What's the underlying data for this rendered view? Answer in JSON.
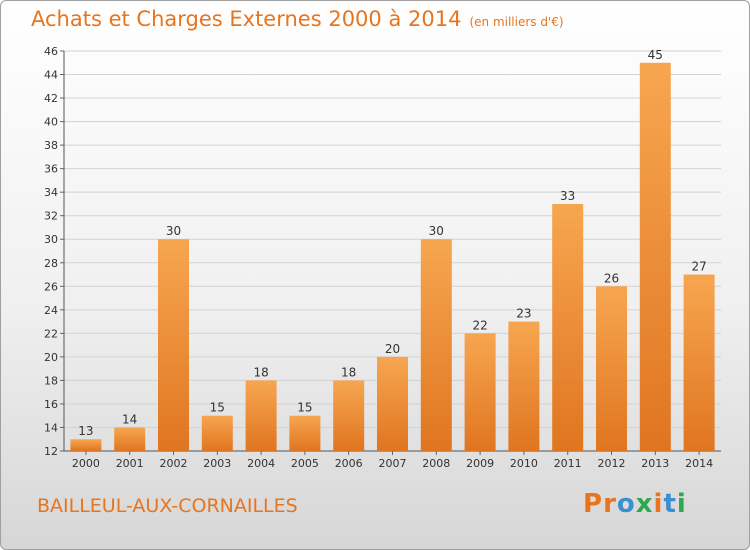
{
  "header": {
    "title": "Achats et Charges Externes 2000 à 2014",
    "unit_note": "(en milliers d'€)"
  },
  "footer": {
    "commune": "BAILLEUL-AUX-CORNAILLES",
    "logo_letters": [
      "P",
      "r",
      "o",
      "x",
      "i",
      "t",
      "i"
    ],
    "logo_colors": [
      "#e8741e",
      "#e8741e",
      "#3a8fd1",
      "#2fa84f",
      "#e8741e",
      "#3a8fd1",
      "#2fa84f"
    ]
  },
  "chart_data": {
    "type": "bar",
    "title": "Achats et Charges Externes 2000 à 2014",
    "subtitle": "(en milliers d'€)",
    "xlabel": "",
    "ylabel": "",
    "categories": [
      "2000",
      "2001",
      "2002",
      "2003",
      "2004",
      "2005",
      "2006",
      "2007",
      "2008",
      "2009",
      "2010",
      "2011",
      "2012",
      "2013",
      "2014"
    ],
    "values": [
      13,
      14,
      30,
      15,
      18,
      15,
      18,
      20,
      30,
      22,
      23,
      33,
      26,
      45,
      27
    ],
    "ylim": [
      12,
      46
    ],
    "yticks": [
      12,
      14,
      16,
      18,
      20,
      22,
      24,
      26,
      28,
      30,
      32,
      34,
      36,
      38,
      40,
      42,
      44,
      46
    ],
    "grid": true,
    "bar_color_top": "#f7a650",
    "bar_color_bottom": "#e07520"
  }
}
